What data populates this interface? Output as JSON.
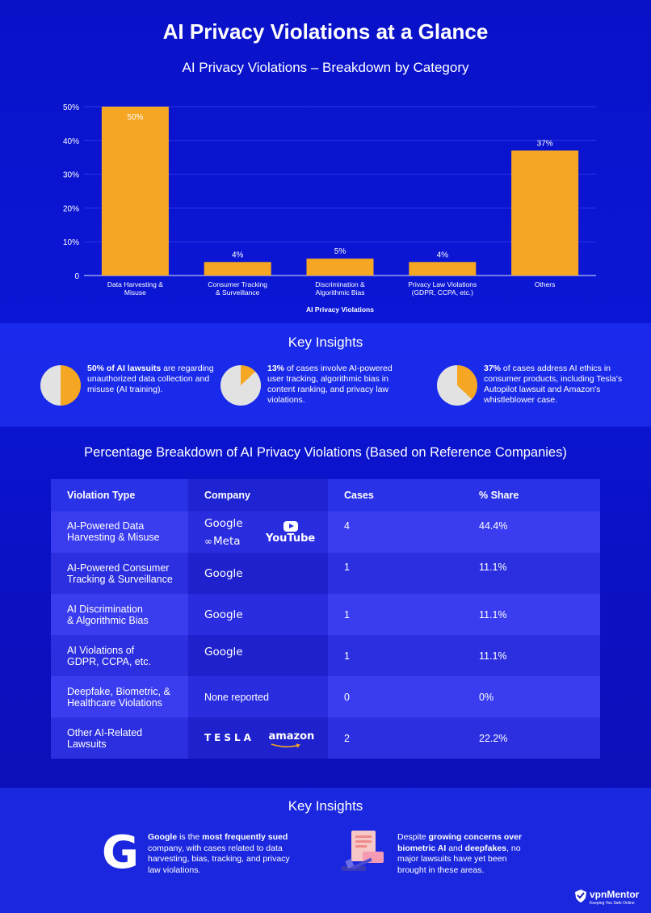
{
  "header": {
    "main_title": "AI Privacy Violations at a Glance",
    "chart_title": "AI Privacy Violations – Breakdown by Category"
  },
  "chart_data": {
    "type": "bar",
    "title": "AI Privacy Violations – Breakdown by Category",
    "xlabel": "AI Privacy Violations",
    "ylabel": "",
    "categories": [
      [
        "Data Harvesting &",
        "Misuse"
      ],
      [
        "Consumer Tracking",
        "& Surveillance"
      ],
      [
        "Discrimination &",
        "Algorithmic Bias"
      ],
      [
        "Privacy Law Violations",
        "(GDPR, CCPA, etc.)"
      ],
      [
        "Others"
      ]
    ],
    "values": [
      50,
      4,
      5,
      4,
      37
    ],
    "data_labels": [
      "50%",
      "4%",
      "5%",
      "4%",
      "37%"
    ],
    "ylim": [
      0,
      50
    ],
    "yticks": [
      0,
      10,
      20,
      30,
      40,
      50
    ],
    "ytick_labels": [
      "0",
      "10%",
      "20%",
      "30%",
      "40%",
      "50%"
    ],
    "grid": true,
    "bar_color": "#f5a623"
  },
  "insights1": {
    "title": "Key Insights",
    "items": [
      {
        "bold": "50% of AI lawsuits",
        "text": " are regarding unauthorized data collection and misuse (AI training).",
        "fraction": 0.5
      },
      {
        "bold": "13%",
        "text": " of cases involve AI-powered user tracking, algorithmic bias in content ranking, and privacy law violations.",
        "fraction": 0.13
      },
      {
        "bold": "37%",
        "text": " of cases address AI ethics in consumer products, including Tesla's Autopilot lawsuit and Amazon's whistleblower case.",
        "fraction": 0.37
      }
    ],
    "pie_colors": {
      "filled": "#f5a623",
      "empty": "#e2e2e2"
    }
  },
  "table": {
    "title": "Percentage Breakdown of AI Privacy Violations (Based on Reference Companies)",
    "headers": [
      "Violation Type",
      "Company",
      "Cases",
      "% Share"
    ],
    "rows": [
      {
        "type": [
          "AI-Powered Data",
          "Harvesting & Misuse"
        ],
        "cases": "4",
        "share": "44.4%"
      },
      {
        "type": [
          "AI-Powered Consumer",
          "Tracking & Surveillance"
        ],
        "cases": "1",
        "share": "11.1%"
      },
      {
        "type": [
          "AI Discrimination",
          "& Algorithmic Bias"
        ],
        "cases": "1",
        "share": "11.1%"
      },
      {
        "type": [
          "AI Violations of",
          "GDPR, CCPA, etc."
        ],
        "cases": "1",
        "share": "11.1%"
      },
      {
        "type": [
          "Deepfake, Biometric, &",
          "Healthcare Violations"
        ],
        "cases": "0",
        "share": "0%",
        "company_text": "None reported"
      },
      {
        "type": [
          "Other AI-Related",
          "Lawsuits"
        ],
        "cases": "2",
        "share": "22.2%"
      }
    ],
    "logos": {
      "google": "Google",
      "meta": "Meta",
      "youtube": "YouTube",
      "tesla": "TESLA",
      "amazon": "amazon"
    }
  },
  "insights2": {
    "title": "Key Insights",
    "left": {
      "b1": "Google",
      "t1": " is the ",
      "b2": "most frequently sued",
      "t2": " company, with cases related to data harvesting, bias, tracking, and privacy law violations."
    },
    "right": {
      "t1": "Despite ",
      "b1": "growing concerns over biometric AI",
      "t2": " and ",
      "b2": "deepfakes",
      "t3": ", no major lawsuits have yet been brought in these areas."
    },
    "g_letter": "G"
  },
  "brand": {
    "name": "vpnMentor",
    "tagline": "Keeping You Safe Online"
  }
}
